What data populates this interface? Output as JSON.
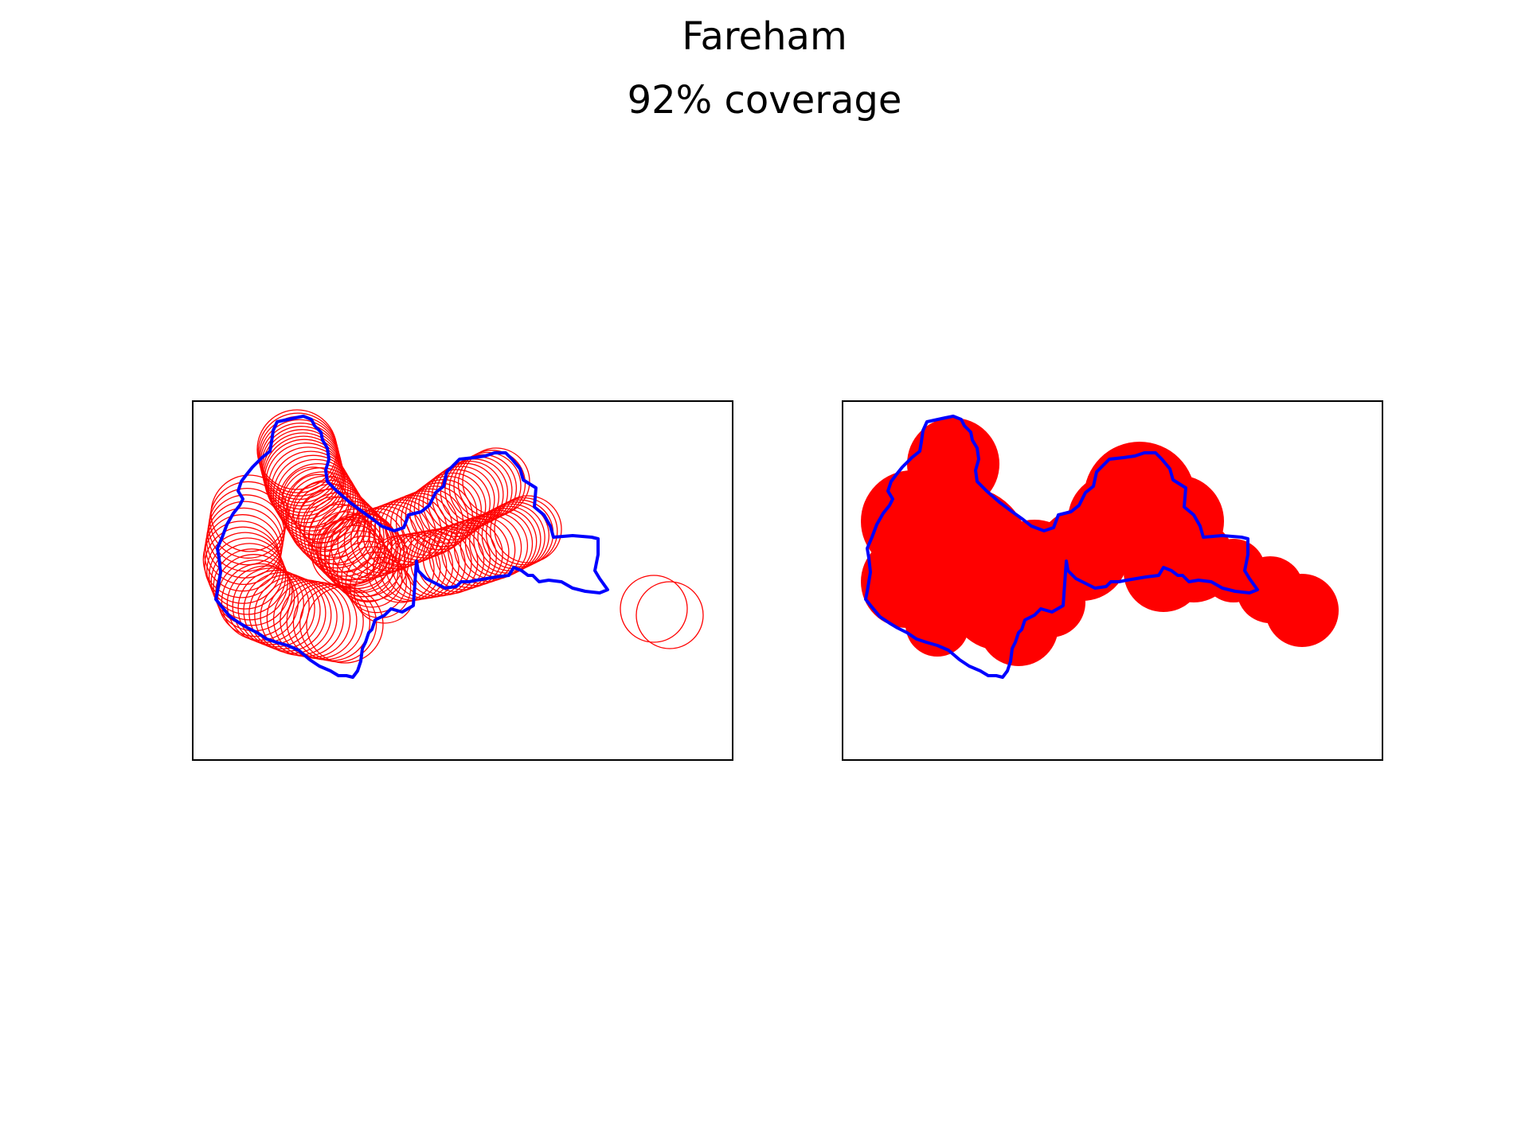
{
  "title": "Fareham",
  "subtitle": "92% coverage",
  "colors": {
    "boundary": "#0000ff",
    "coverage": "#ff0000",
    "frame": "#000000"
  },
  "panels": [
    {
      "style": "outline-circles"
    },
    {
      "style": "filled-union"
    }
  ]
}
